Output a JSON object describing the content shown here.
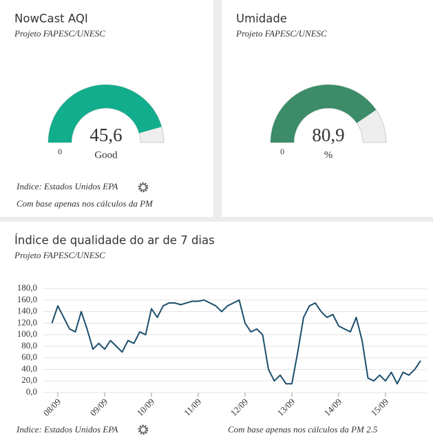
{
  "chart_data": [
    {
      "type": "gauge",
      "title": "NowCast AQI",
      "subtitle": "Projeto FAPESC/UNESC",
      "values": [
        45.6
      ],
      "value_labels": [
        "45,6"
      ],
      "label": "Good",
      "ylim": [
        0,
        50
      ],
      "yticks": [
        0
      ],
      "color": "#12ad8c",
      "notes": [
        "Indice: Estados Unidos EPA",
        "Com base apenas nos cálculos da PM"
      ]
    },
    {
      "type": "gauge",
      "title": "Umidade",
      "subtitle": "Projeto FAPESC/UNESC",
      "values": [
        80.9
      ],
      "value_labels": [
        "80,9"
      ],
      "label": "%",
      "ylim": [
        0,
        100
      ],
      "yticks": [
        0
      ],
      "color": "#3c8c69"
    },
    {
      "type": "line",
      "title": "Índice de qualidade do ar de 7 dias",
      "subtitle": "Projeto FAPESC/UNESC",
      "categories": [
        null,
        "08/09",
        null,
        null,
        null,
        null,
        null,
        null,
        null,
        "09/09",
        null,
        null,
        null,
        null,
        null,
        null,
        null,
        "10/09",
        null,
        null,
        null,
        null,
        null,
        null,
        null,
        "11/09",
        null,
        null,
        null,
        null,
        null,
        null,
        null,
        "12/09",
        null,
        null,
        null,
        null,
        null,
        null,
        null,
        "13/09",
        null,
        null,
        null,
        null,
        null,
        null,
        null,
        "14/09",
        null,
        null,
        null,
        null,
        null,
        null,
        null,
        "15/09",
        null,
        null,
        null,
        null,
        null,
        null
      ],
      "series": [
        {
          "color": "#1b4d6c",
          "values": [
            120,
            150,
            130,
            110,
            105,
            140,
            110,
            75,
            85,
            75,
            90,
            80,
            70,
            90,
            85,
            105,
            100,
            145,
            130,
            150,
            155,
            155,
            152,
            155,
            158,
            158,
            160,
            155,
            150,
            140,
            150,
            155,
            160,
            120,
            105,
            110,
            100,
            40,
            20,
            30,
            15,
            15,
            70,
            130,
            150,
            155,
            140,
            130,
            135,
            115,
            110,
            105,
            130,
            90,
            25,
            20,
            30,
            20,
            35,
            15,
            35,
            30,
            40,
            55
          ]
        }
      ],
      "ylim": [
        0,
        180
      ],
      "yticks": [
        {
          "value": 0,
          "label": "0,0"
        },
        {
          "value": 20,
          "label": "20,0"
        },
        {
          "value": 40,
          "label": "40,0"
        },
        {
          "value": 60,
          "label": "60,0"
        },
        {
          "value": 80,
          "label": "80,0"
        },
        {
          "value": 100,
          "label": "100,0"
        },
        {
          "value": 120,
          "label": "120,0"
        },
        {
          "value": 140,
          "label": "140,0"
        },
        {
          "value": 160,
          "label": "160,0"
        },
        {
          "value": 180,
          "label": "180,0"
        }
      ],
      "grid": true
    }
  ],
  "footer": {
    "index": "Indice: Estados Unidos EPA",
    "basis": "Com base apenas nos cálculos da PM 2.5"
  }
}
